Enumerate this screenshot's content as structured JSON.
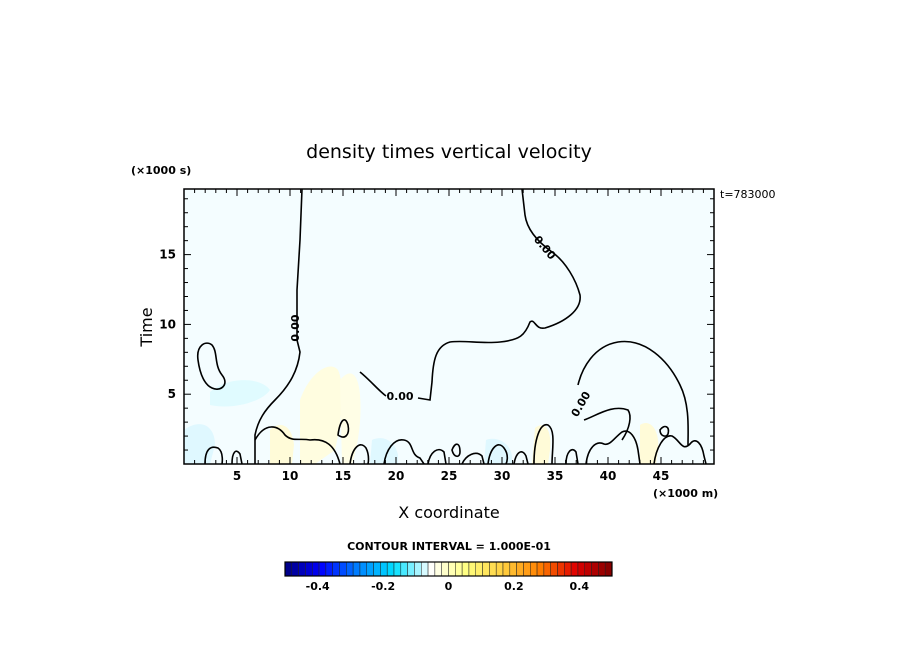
{
  "chart_data": {
    "type": "heatmap",
    "title": "density times vertical velocity",
    "xlabel": "X coordinate",
    "ylabel": "Time",
    "x_unit": "(×1000 m)",
    "y_unit": "(×1000 s)",
    "timestamp": "t=783000",
    "contour_interval_label": "CONTOUR INTERVAL = 1.000E-01",
    "xlim": [
      0,
      50
    ],
    "ylim": [
      0,
      19.7
    ],
    "x_ticks": [
      5,
      10,
      15,
      20,
      25,
      30,
      35,
      40,
      45
    ],
    "y_ticks": [
      5,
      10,
      15
    ],
    "contour_labels": [
      "0.00",
      "0.00",
      "0.00",
      "0.00"
    ],
    "colorbar": {
      "range": [
        -0.5,
        0.5
      ],
      "ticks": [
        -0.4,
        -0.2,
        0,
        0.2,
        0.4
      ],
      "tick_labels": [
        "-0.4",
        "-0.2",
        "0",
        "0.2",
        "0.4"
      ],
      "stops": [
        "#00007f",
        "#0000ff",
        "#0080ff",
        "#00e0ff",
        "#ffffff",
        "#ffff80",
        "#ffd040",
        "#ff8000",
        "#e00000",
        "#800000"
      ]
    },
    "background_color": "#f4fdff",
    "grid": false
  }
}
